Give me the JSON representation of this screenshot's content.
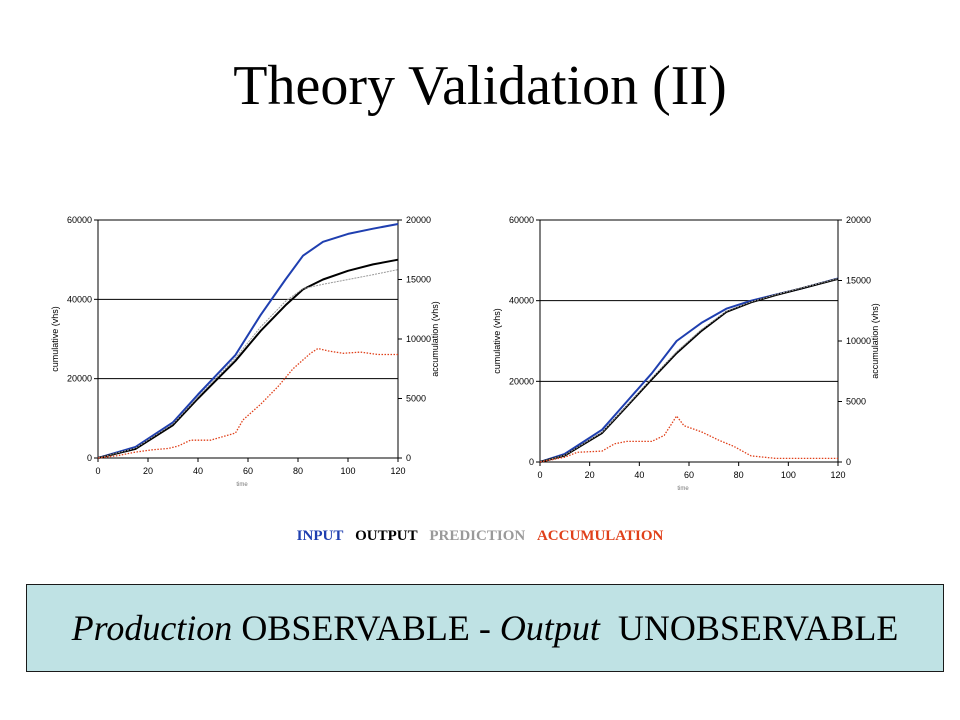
{
  "title": "Theory Validation (II)",
  "legend": {
    "items": [
      {
        "label": "INPUT",
        "color": "#1f3fb0"
      },
      {
        "label": "OUTPUT",
        "color": "#000000"
      },
      {
        "label": "PREDICTION",
        "color": "#9a9a9a"
      },
      {
        "label": "ACCUMULATION",
        "color": "#e0401a"
      }
    ]
  },
  "banner": {
    "word1": "Production",
    "word2": "OBSERVABLE",
    "sep": "-",
    "word3": "Output",
    "word4": "UNOBSERVABLE"
  },
  "chart_data": [
    {
      "type": "line",
      "title": "",
      "xlabel": "time",
      "ylabel": "cumulative (vhs)",
      "y2label": "accumulation (vhs)",
      "xlim": [
        0,
        120
      ],
      "ylim": [
        0,
        60000
      ],
      "y2lim": [
        0,
        20000
      ],
      "xticks": [
        0,
        20,
        40,
        60,
        80,
        100,
        120
      ],
      "yticks": [
        0,
        20000,
        40000,
        60000
      ],
      "y2ticks": [
        0,
        5000,
        10000,
        15000,
        20000
      ],
      "gridlines_y": [
        20000,
        40000
      ],
      "series": [
        {
          "name": "INPUT",
          "axis": "y",
          "color": "#1f3fb0",
          "style": "solid",
          "x": [
            0,
            15,
            30,
            40,
            55,
            65,
            75,
            82,
            90,
            100,
            110,
            120
          ],
          "y": [
            0,
            2800,
            9000,
            16000,
            26000,
            36000,
            45000,
            51000,
            54500,
            56500,
            57800,
            59000
          ]
        },
        {
          "name": "OUTPUT",
          "axis": "y",
          "color": "#000000",
          "style": "solid",
          "x": [
            0,
            15,
            30,
            40,
            55,
            65,
            75,
            82,
            90,
            100,
            110,
            120
          ],
          "y": [
            0,
            2300,
            8300,
            15000,
            24500,
            32000,
            38500,
            42500,
            45000,
            47200,
            48800,
            50000
          ]
        },
        {
          "name": "PREDICTION",
          "axis": "y",
          "color": "#9a9a9a",
          "style": "dashed",
          "x": [
            0,
            15,
            30,
            40,
            55,
            65,
            75,
            82,
            90,
            100,
            110,
            120
          ],
          "y": [
            0,
            2500,
            8600,
            15400,
            25200,
            33000,
            39500,
            42700,
            43800,
            45000,
            46200,
            47500
          ]
        },
        {
          "name": "ACCUMULATION",
          "axis": "y2",
          "color": "#e0401a",
          "style": "dotted",
          "x": [
            0,
            8,
            15,
            22,
            28,
            32,
            37,
            45,
            50,
            55,
            58,
            65,
            72,
            78,
            85,
            88,
            92,
            98,
            105,
            112,
            120
          ],
          "y": [
            0,
            200,
            500,
            700,
            800,
            1000,
            1500,
            1500,
            1800,
            2100,
            3200,
            4500,
            6000,
            7500,
            8800,
            9200,
            9000,
            8800,
            8900,
            8700,
            8700
          ]
        }
      ]
    },
    {
      "type": "line",
      "title": "",
      "xlabel": "time",
      "ylabel": "cumulative (vhs)",
      "y2label": "accumulation (vhs)",
      "xlim": [
        0,
        120
      ],
      "ylim": [
        0,
        60000
      ],
      "y2lim": [
        0,
        20000
      ],
      "xticks": [
        0,
        20,
        40,
        60,
        80,
        100,
        120
      ],
      "yticks": [
        0,
        20000,
        40000,
        60000
      ],
      "y2ticks": [
        0,
        5000,
        10000,
        15000,
        20000
      ],
      "gridlines_y": [
        20000,
        40000
      ],
      "series": [
        {
          "name": "INPUT",
          "axis": "y",
          "color": "#1f3fb0",
          "style": "solid",
          "x": [
            0,
            10,
            25,
            35,
            45,
            55,
            65,
            75,
            85,
            95,
            105,
            120
          ],
          "y": [
            0,
            2000,
            8000,
            15000,
            22000,
            30000,
            34500,
            38000,
            40000,
            41500,
            43000,
            45500
          ]
        },
        {
          "name": "OUTPUT",
          "axis": "y",
          "color": "#000000",
          "style": "solid",
          "x": [
            0,
            10,
            25,
            35,
            45,
            55,
            65,
            75,
            85,
            95,
            105,
            120
          ],
          "y": [
            0,
            1600,
            7200,
            13800,
            20500,
            27000,
            32500,
            37200,
            39600,
            41400,
            43000,
            45400
          ]
        },
        {
          "name": "PREDICTION",
          "axis": "y",
          "color": "#9a9a9a",
          "style": "dashed",
          "x": [
            0,
            10,
            25,
            35,
            45,
            55,
            65,
            75,
            85,
            95,
            105,
            120
          ],
          "y": [
            0,
            1700,
            7400,
            14000,
            20800,
            27300,
            32800,
            37400,
            39700,
            41500,
            43100,
            45500
          ]
        },
        {
          "name": "ACCUMULATION",
          "axis": "y2",
          "color": "#e0401a",
          "style": "dotted",
          "x": [
            0,
            10,
            15,
            25,
            30,
            35,
            45,
            50,
            55,
            58,
            65,
            72,
            78,
            85,
            95,
            105,
            120
          ],
          "y": [
            0,
            400,
            800,
            900,
            1500,
            1700,
            1700,
            2200,
            3800,
            3000,
            2500,
            1800,
            1300,
            500,
            300,
            300,
            300
          ]
        }
      ]
    }
  ]
}
